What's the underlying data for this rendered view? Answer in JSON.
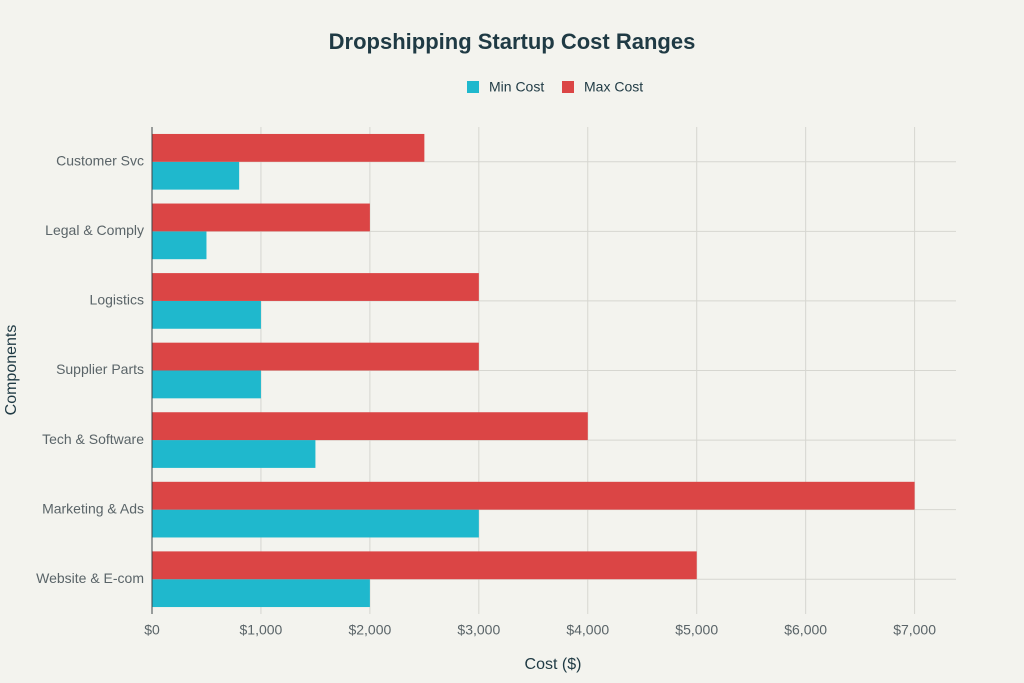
{
  "chart_data": {
    "type": "hbar",
    "title": "Dropshipping Startup Cost Ranges",
    "x_label": "Cost ($)",
    "y_label": "Components",
    "categories": [
      "Website & E-com",
      "Marketing & Ads",
      "Tech & Software",
      "Supplier Parts",
      "Logistics",
      "Legal & Comply",
      "Customer Svc"
    ],
    "series": [
      {
        "name": "Min Cost",
        "color": "#1fb8cd",
        "values": [
          2000,
          3000,
          1500,
          1000,
          1000,
          500,
          800
        ]
      },
      {
        "name": "Max Cost",
        "color": "#db4545",
        "values": [
          5000,
          7000,
          4000,
          3000,
          3000,
          2000,
          2500
        ]
      }
    ],
    "xlim": [
      0,
      7380
    ],
    "xticks": [
      {
        "value": 0,
        "label": "$0"
      },
      {
        "value": 1000,
        "label": "$1,000"
      },
      {
        "value": 2000,
        "label": "$2,000"
      },
      {
        "value": 3000,
        "label": "$3,000"
      },
      {
        "value": 4000,
        "label": "$4,000"
      },
      {
        "value": 5000,
        "label": "$5,000"
      },
      {
        "value": 6000,
        "label": "$6,000"
      },
      {
        "value": 7000,
        "label": "$7,000"
      }
    ],
    "grid": true,
    "legend": "top"
  }
}
